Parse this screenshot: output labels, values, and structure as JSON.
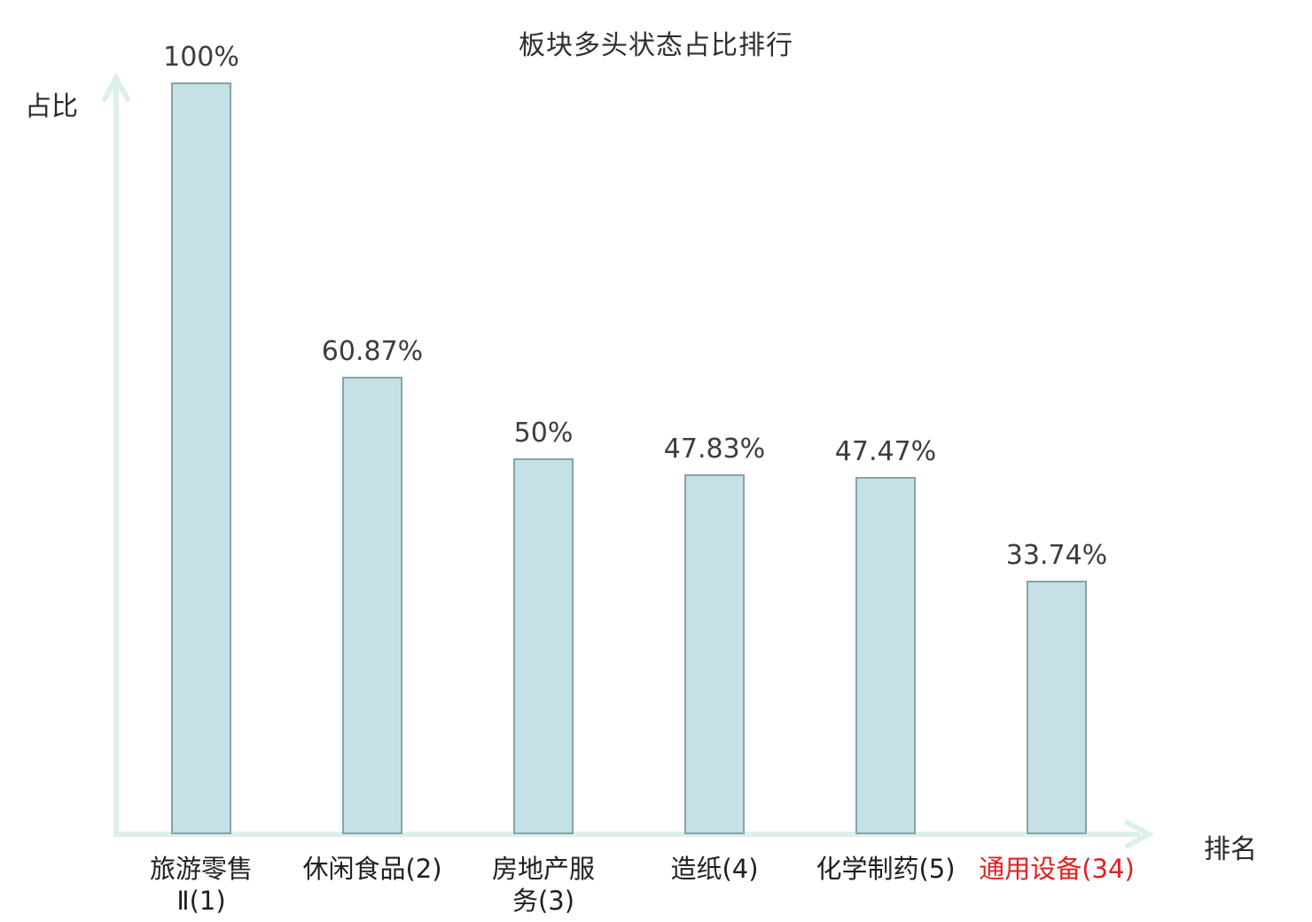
{
  "title": "板块多头状态占比排行",
  "y_axis_label": "占比",
  "x_axis_label": "排名",
  "colors": {
    "bar_fill": "#c5e1e6",
    "bar_border": "#87a2a9",
    "axis": "#ddefeb",
    "value_text": "#3d3d3d",
    "category_text": "#1f1f1f",
    "highlight_text": "#e02020"
  },
  "chart_data": {
    "type": "bar",
    "title": "板块多头状态占比排行",
    "xlabel": "排名",
    "ylabel": "占比",
    "ylim": [
      0,
      100
    ],
    "grid": false,
    "legend": false,
    "categories": [
      "旅游零售Ⅱ(1)",
      "休闲食品(2)",
      "房地产服务(3)",
      "造纸(4)",
      "化学制药(5)",
      "通用设备(34)"
    ],
    "category_lines": [
      [
        "旅游零售",
        "Ⅱ(1)"
      ],
      [
        "休闲食品(2)"
      ],
      [
        "房地产服",
        "务(3)"
      ],
      [
        "造纸(4)"
      ],
      [
        "化学制药(5)"
      ],
      [
        "通用设备(34)"
      ]
    ],
    "values": [
      100,
      60.87,
      50,
      47.83,
      47.47,
      33.74
    ],
    "value_labels": [
      "100%",
      "60.87%",
      "50%",
      "47.83%",
      "47.47%",
      "33.74%"
    ],
    "highlighted_category_index": 5
  }
}
